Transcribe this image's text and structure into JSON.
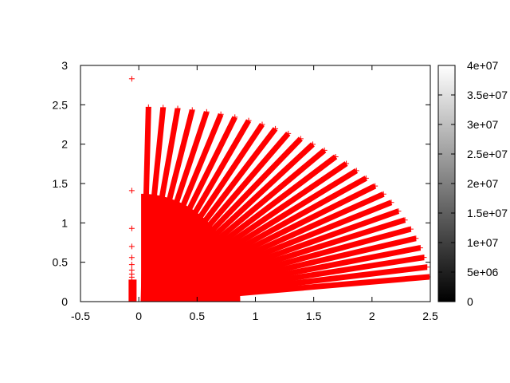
{
  "chart_data": {
    "type": "scatter",
    "marker": "+",
    "color": "#ff0000",
    "xlim": [
      -0.5,
      2.5
    ],
    "ylim": [
      0,
      3
    ],
    "xticks": [
      "-0.5",
      "0",
      "0.5",
      "1",
      "1.5",
      "2",
      "2.5"
    ],
    "xtick_values": [
      -0.5,
      0,
      0.5,
      1,
      1.5,
      2,
      2.5
    ],
    "yticks": [
      "0",
      "0.5",
      "1",
      "1.5",
      "2",
      "2.5",
      "3"
    ],
    "ytick_values": [
      0,
      0.5,
      1,
      1.5,
      2,
      2.5,
      3
    ],
    "grid": false,
    "rays": {
      "count": 29,
      "angle_start_deg": 89,
      "angle_end_deg": 7.3,
      "r_max": 2.47
    },
    "dense_region": {
      "x_max": 0.85,
      "y_max": 1.37
    },
    "spike": {
      "x": -0.06,
      "points_y": [
        2.83,
        1.41,
        0.93,
        0.7,
        0.56,
        0.47,
        0.4,
        0.35,
        0.31
      ],
      "cluster_y_max": 0.28
    },
    "colorbox": {
      "range": [
        0,
        40000000
      ],
      "palette": [
        "#000000",
        "#ffffff"
      ],
      "ticks": [
        "0",
        "5e+06",
        "1e+07",
        "1.5e+07",
        "2e+07",
        "2.5e+07",
        "3e+07",
        "3.5e+07",
        "4e+07"
      ],
      "tick_values": [
        0,
        5000000,
        10000000,
        15000000,
        20000000,
        25000000,
        30000000,
        35000000,
        40000000
      ]
    }
  }
}
